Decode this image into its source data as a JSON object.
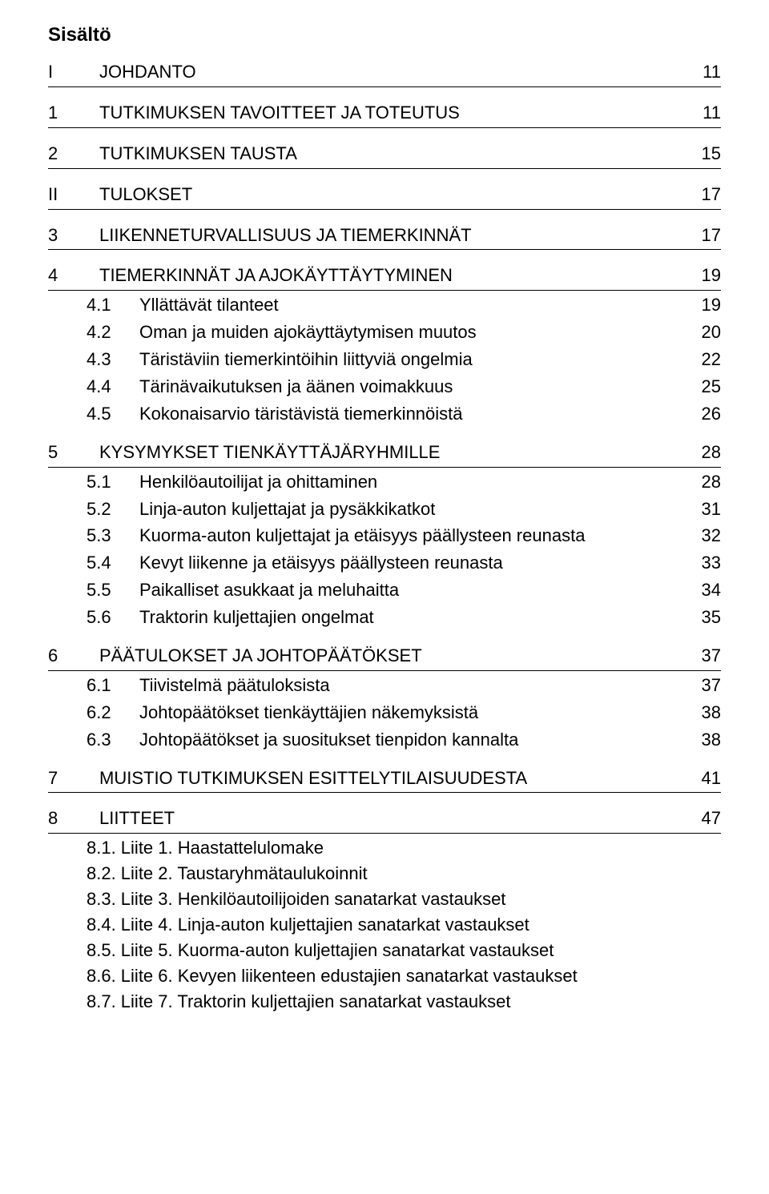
{
  "title": "Sisältö",
  "toc": [
    {
      "level": 0,
      "num": "I",
      "label": "JOHDANTO",
      "page": "11"
    },
    {
      "level": 0,
      "num": "1",
      "label": "TUTKIMUKSEN TAVOITTEET JA TOTEUTUS",
      "page": "11"
    },
    {
      "level": 0,
      "num": "2",
      "label": "TUTKIMUKSEN TAUSTA",
      "page": "15"
    },
    {
      "level": 0,
      "num": "II",
      "label": "TULOKSET",
      "page": "17"
    },
    {
      "level": 0,
      "num": "3",
      "label": "LIIKENNETURVALLISUUS JA TIEMERKINNÄT",
      "page": "17"
    },
    {
      "level": 0,
      "num": "4",
      "label": "TIEMERKINNÄT JA AJOKÄYTTÄYTYMINEN",
      "page": "19"
    },
    {
      "level": 1,
      "num": "4.1",
      "label": "Yllättävät tilanteet",
      "page": "19"
    },
    {
      "level": 1,
      "num": "4.2",
      "label": "Oman ja muiden ajokäyttäytymisen muutos",
      "page": "20"
    },
    {
      "level": 1,
      "num": "4.3",
      "label": "Täristäviin tiemerkintöihin liittyviä ongelmia",
      "page": "22"
    },
    {
      "level": 1,
      "num": "4.4",
      "label": "Tärinävaikutuksen ja äänen voimakkuus",
      "page": "25"
    },
    {
      "level": 1,
      "num": "4.5",
      "label": "Kokonaisarvio täristävistä tiemerkinnöistä",
      "page": "26"
    },
    {
      "level": 0,
      "num": "5",
      "label": "KYSYMYKSET TIENKÄYTTÄJÄRYHMILLE",
      "page": "28"
    },
    {
      "level": 1,
      "num": "5.1",
      "label": "Henkilöautoilijat ja ohittaminen",
      "page": "28"
    },
    {
      "level": 1,
      "num": "5.2",
      "label": "Linja-auton kuljettajat ja pysäkkikatkot",
      "page": "31"
    },
    {
      "level": 1,
      "num": "5.3",
      "label": "Kuorma-auton kuljettajat ja etäisyys päällysteen reunasta",
      "page": "32"
    },
    {
      "level": 1,
      "num": "5.4",
      "label": "Kevyt liikenne ja etäisyys päällysteen reunasta",
      "page": "33"
    },
    {
      "level": 1,
      "num": "5.5",
      "label": "Paikalliset asukkaat ja meluhaitta",
      "page": "34"
    },
    {
      "level": 1,
      "num": "5.6",
      "label": "Traktorin kuljettajien ongelmat",
      "page": "35"
    },
    {
      "level": 0,
      "num": "6",
      "label": "PÄÄTULOKSET JA JOHTOPÄÄTÖKSET",
      "page": "37"
    },
    {
      "level": 1,
      "num": "6.1",
      "label": "Tiivistelmä päätuloksista",
      "page": "37"
    },
    {
      "level": 1,
      "num": "6.2",
      "label": "Johtopäätökset tienkäyttäjien näkemyksistä",
      "page": "38"
    },
    {
      "level": 1,
      "num": "6.3",
      "label": "Johtopäätökset ja suositukset tienpidon kannalta",
      "page": "38"
    },
    {
      "level": 0,
      "num": "7",
      "label": "MUISTIO TUTKIMUKSEN ESITTELYTILAISUUDESTA",
      "page": "41"
    },
    {
      "level": 0,
      "num": "8",
      "label": "LIITTEET",
      "page": "47"
    }
  ],
  "appendix": [
    "8.1. Liite 1. Haastattelulomake",
    "8.2. Liite 2. Taustaryhmätaulukoinnit",
    "8.3. Liite 3. Henkilöautoilijoiden sanatarkat vastaukset",
    "8.4. Liite 4. Linja-auton kuljettajien sanatarkat vastaukset",
    "8.5. Liite 5. Kuorma-auton kuljettajien sanatarkat vastaukset",
    "8.6. Liite 6. Kevyen liikenteen edustajien sanatarkat vastaukset",
    "8.7. Liite 7. Traktorin kuljettajien sanatarkat vastaukset"
  ]
}
